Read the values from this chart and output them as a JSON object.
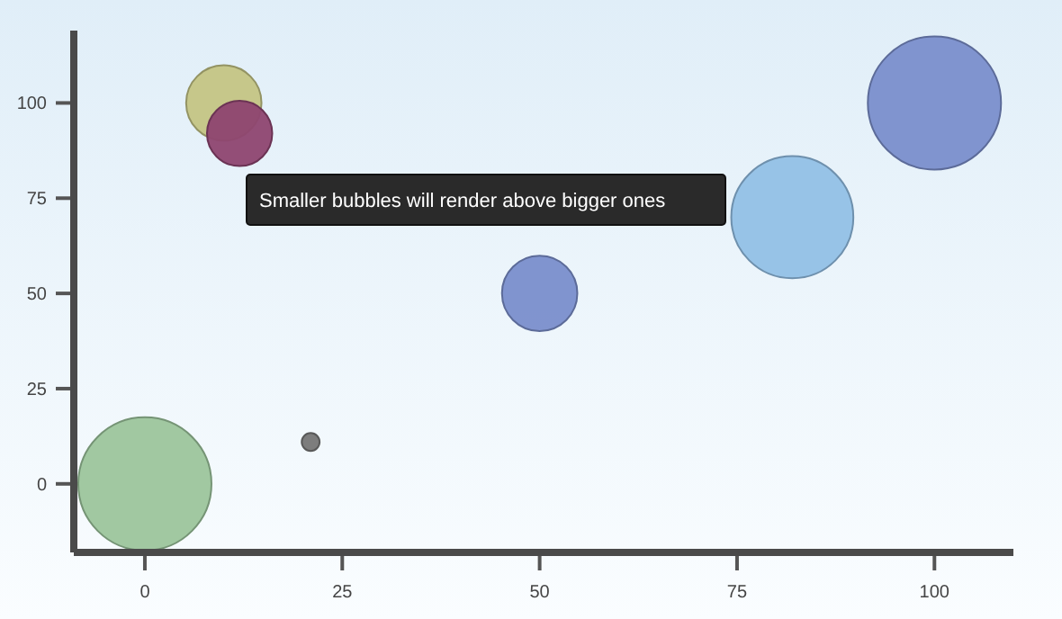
{
  "chart_data": {
    "type": "bubble",
    "x": [
      0,
      10,
      12,
      21,
      50,
      82,
      100
    ],
    "values": [
      0,
      100,
      92,
      11,
      50,
      70,
      100
    ],
    "sizes": [
      1,
      0.32,
      0.24,
      0.018,
      0.32,
      0.84,
      1
    ],
    "colors": [
      "#9cc59c",
      "#c4c484",
      "#8e4470",
      "#767676",
      "#7a8ecc",
      "#92c0e6",
      "#7a8ecc"
    ],
    "xlim": [
      -9,
      110
    ],
    "ylim": [
      -18,
      119
    ],
    "xticks": [
      0,
      25,
      50,
      75,
      100
    ],
    "yticks": [
      0,
      25,
      50,
      75,
      100
    ],
    "annotations": [
      "Smaller bubbles will render above bigger ones"
    ]
  }
}
